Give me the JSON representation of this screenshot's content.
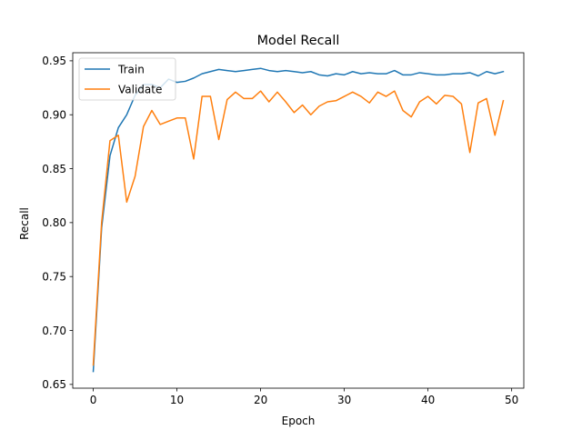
{
  "chart_data": {
    "type": "line",
    "title": "Model Recall",
    "xlabel": "Epoch",
    "ylabel": "Recall",
    "xlim": [
      -2.45,
      51.45
    ],
    "ylim": [
      0.6465,
      0.9575
    ],
    "xticks": [
      0,
      10,
      20,
      30,
      40,
      50
    ],
    "yticks": [
      0.65,
      0.7,
      0.75,
      0.8,
      0.85,
      0.9,
      0.95
    ],
    "grid": false,
    "legend_position": "top-left",
    "x": [
      0,
      1,
      2,
      3,
      4,
      5,
      6,
      7,
      8,
      9,
      10,
      11,
      12,
      13,
      14,
      15,
      16,
      17,
      18,
      19,
      20,
      21,
      22,
      23,
      24,
      25,
      26,
      27,
      28,
      29,
      30,
      31,
      32,
      33,
      34,
      35,
      36,
      37,
      38,
      39,
      40,
      41,
      42,
      43,
      44,
      45,
      46,
      47,
      48,
      49
    ],
    "series": [
      {
        "name": "Train",
        "color": "#1f77b4",
        "values": [
          0.662,
          0.795,
          0.862,
          0.888,
          0.9,
          0.918,
          0.928,
          0.928,
          0.925,
          0.933,
          0.93,
          0.931,
          0.934,
          0.938,
          0.94,
          0.942,
          0.941,
          0.94,
          0.941,
          0.942,
          0.943,
          0.941,
          0.94,
          0.941,
          0.94,
          0.939,
          0.94,
          0.937,
          0.936,
          0.938,
          0.937,
          0.94,
          0.938,
          0.939,
          0.938,
          0.938,
          0.941,
          0.937,
          0.937,
          0.939,
          0.938,
          0.937,
          0.937,
          0.938,
          0.938,
          0.939,
          0.936,
          0.94,
          0.938,
          0.94
        ]
      },
      {
        "name": "Validate",
        "color": "#ff7f0e",
        "values": [
          0.668,
          0.8,
          0.876,
          0.881,
          0.819,
          0.843,
          0.889,
          0.904,
          0.891,
          0.894,
          0.897,
          0.897,
          0.859,
          0.917,
          0.917,
          0.877,
          0.914,
          0.921,
          0.915,
          0.915,
          0.922,
          0.912,
          0.921,
          0.912,
          0.902,
          0.909,
          0.9,
          0.908,
          0.912,
          0.913,
          0.917,
          0.921,
          0.917,
          0.911,
          0.921,
          0.917,
          0.922,
          0.904,
          0.898,
          0.912,
          0.917,
          0.91,
          0.918,
          0.917,
          0.91,
          0.865,
          0.911,
          0.915,
          0.881,
          0.913
        ]
      }
    ]
  }
}
